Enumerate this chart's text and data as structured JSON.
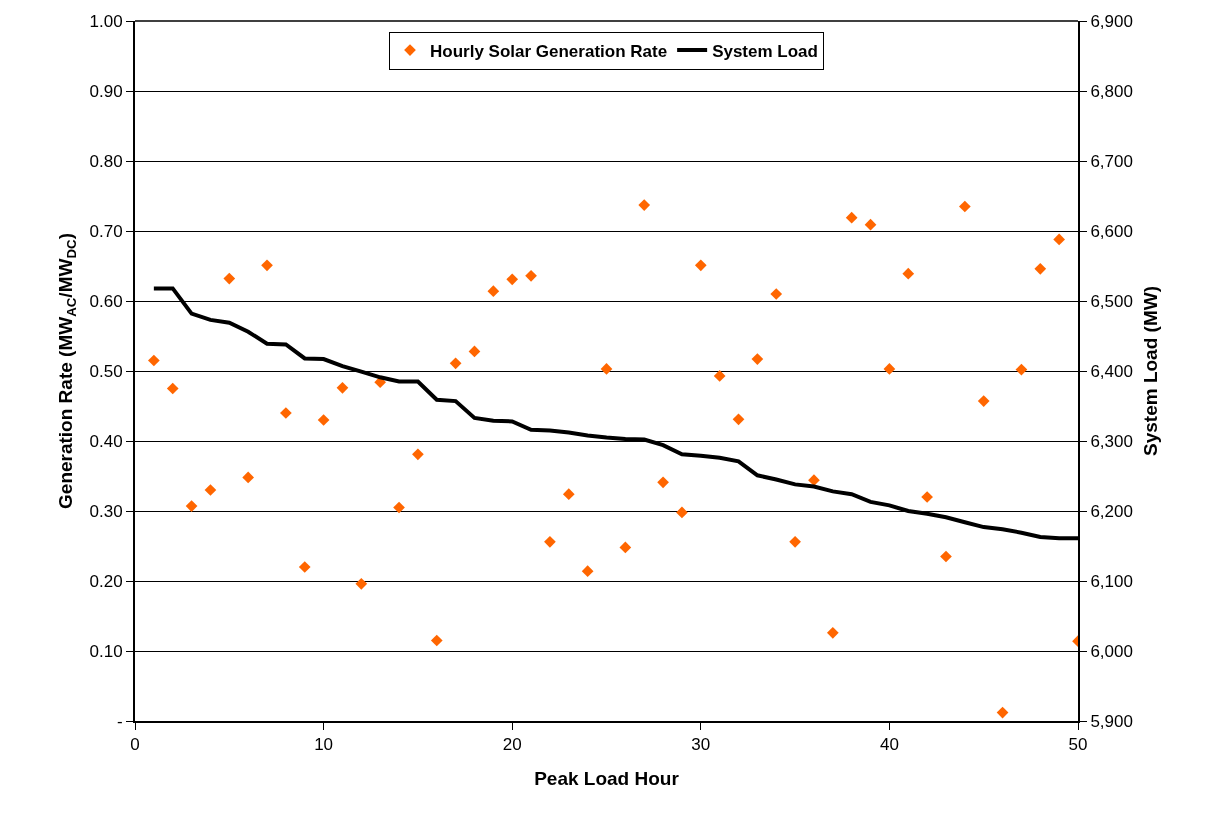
{
  "chart_data": {
    "type": "scatter",
    "xlabel": "Peak Load Hour",
    "ylabel": "Generation Rate (MW$_{AC}$/MW$_{DC}$)",
    "y2label": "System Load (MW)",
    "x": [
      1,
      2,
      3,
      4,
      5,
      6,
      7,
      8,
      9,
      10,
      11,
      12,
      13,
      14,
      15,
      16,
      17,
      18,
      19,
      20,
      21,
      22,
      23,
      24,
      25,
      26,
      27,
      28,
      29,
      30,
      31,
      32,
      33,
      34,
      35,
      36,
      37,
      38,
      39,
      40,
      41,
      42,
      43,
      44,
      45,
      46,
      47,
      48,
      49,
      50
    ],
    "series": [
      {
        "name": "Hourly Solar Generation Rate",
        "color": "#ff6600",
        "marker": "diamond",
        "values": [
          0.515,
          0.475,
          0.307,
          0.33,
          0.632,
          0.348,
          0.651,
          0.44,
          0.22,
          0.43,
          0.476,
          0.196,
          0.484,
          0.305,
          0.381,
          0.115,
          0.511,
          0.528,
          0.614,
          0.631,
          0.636,
          0.256,
          0.324,
          0.214,
          0.503,
          0.248,
          0.737,
          0.341,
          0.298,
          0.651,
          0.493,
          0.431,
          0.517,
          0.61,
          0.256,
          0.344,
          0.126,
          0.719,
          0.709,
          0.503,
          0.639,
          0.32,
          0.235,
          0.735,
          0.457,
          0.012,
          0.502,
          0.646,
          0.688,
          0.114
        ]
      },
      {
        "name": "System Load",
        "type": "line",
        "axis": "y2",
        "color": "#000000",
        "marker": "none",
        "line_style": "solid",
        "values": [
          6518,
          6518,
          6482,
          6473,
          6469,
          6456,
          6439,
          6438,
          6418,
          6417,
          6407,
          6399,
          6391,
          6385,
          6385,
          6359,
          6357,
          6333,
          6329,
          6328,
          6316,
          6315,
          6312,
          6308,
          6305,
          6303,
          6302,
          6294,
          6281,
          6279,
          6276,
          6271,
          6251,
          6245,
          6238,
          6235,
          6228,
          6224,
          6213,
          6208,
          6200,
          6196,
          6191,
          6184,
          6177,
          6174,
          6169,
          6163,
          6161,
          6161
        ]
      }
    ],
    "xlim": [
      0,
      50
    ],
    "xticks": [
      0,
      10,
      20,
      30,
      40,
      50
    ],
    "ylim": [
      0,
      1
    ],
    "yticks": [
      {
        "value": 0,
        "label": "-"
      },
      {
        "value": 0.1,
        "label": "0.10"
      },
      {
        "value": 0.2,
        "label": "0.20"
      },
      {
        "value": 0.3,
        "label": "0.30"
      },
      {
        "value": 0.4,
        "label": "0.40"
      },
      {
        "value": 0.5,
        "label": "0.50"
      },
      {
        "value": 0.6,
        "label": "0.60"
      },
      {
        "value": 0.7,
        "label": "0.70"
      },
      {
        "value": 0.8,
        "label": "0.80"
      },
      {
        "value": 0.9,
        "label": "0.90"
      },
      {
        "value": 1,
        "label": "1.00"
      }
    ],
    "y2lim": [
      5900,
      6900
    ],
    "y2ticks": [
      {
        "value": 5900,
        "label": "5,900"
      },
      {
        "value": 6000,
        "label": "6,000"
      },
      {
        "value": 6100,
        "label": "6,100"
      },
      {
        "value": 6200,
        "label": "6,200"
      },
      {
        "value": 6300,
        "label": "6,300"
      },
      {
        "value": 6400,
        "label": "6,400"
      },
      {
        "value": 6500,
        "label": "6,500"
      },
      {
        "value": 6600,
        "label": "6,600"
      },
      {
        "value": 6700,
        "label": "6,700"
      },
      {
        "value": 6800,
        "label": "6,800"
      },
      {
        "value": 6900,
        "label": "6,900"
      }
    ],
    "grid": "y",
    "legend": "top"
  }
}
